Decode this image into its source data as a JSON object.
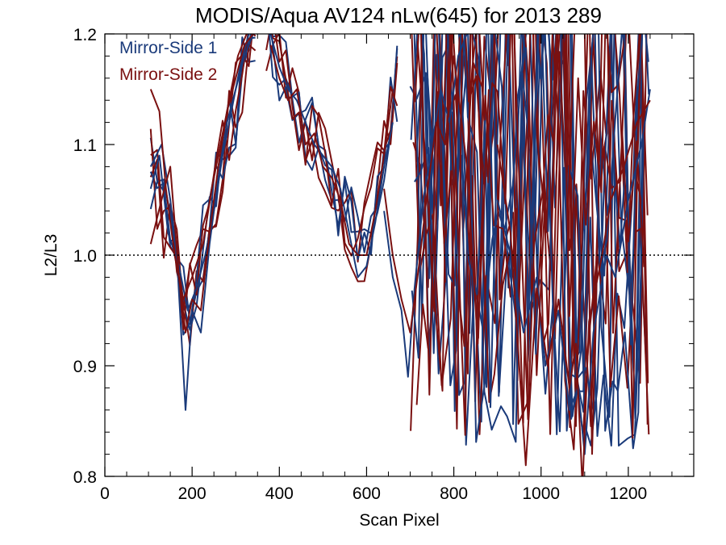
{
  "chart_data": {
    "type": "line",
    "title": "MODIS/Aqua AV124 nLw(645) for 2013 289",
    "xlabel": "Scan Pixel",
    "ylabel": "L2/L3",
    "xlim": [
      0,
      1350
    ],
    "ylim": [
      0.8,
      1.2
    ],
    "xticks": [
      0,
      200,
      400,
      600,
      800,
      1000,
      1200
    ],
    "yticks": [
      0.8,
      0.9,
      1.0,
      1.1,
      1.2
    ],
    "xtick_labels": [
      "0",
      "200",
      "400",
      "600",
      "800",
      "1000",
      "1200"
    ],
    "ytick_labels": [
      "0.8",
      "0.9",
      "1.0",
      "1.1",
      "1.2"
    ],
    "reference_line": 1.0,
    "grid": false,
    "legend_position": "top-left",
    "colors": {
      "mirror_side_1": "#1a3a7a",
      "mirror_side_2": "#7a1010"
    },
    "series": [
      {
        "name": "Mirror-Side 1",
        "color": "#1a3a7a",
        "x": [
          105,
          130,
          150,
          165,
          185,
          200,
          220,
          240,
          260,
          280,
          300,
          320,
          340
        ],
        "y": [
          1.08,
          1.1,
          1.05,
          1.0,
          0.86,
          0.95,
          0.93,
          1.01,
          1.07,
          1.12,
          1.15,
          1.18,
          1.2
        ]
      },
      {
        "name": "Mirror-Side 1",
        "color": "#1a3a7a",
        "x": [
          105,
          125,
          145,
          170,
          190,
          210,
          230,
          250,
          270,
          290,
          310,
          330
        ],
        "y": [
          1.06,
          1.09,
          1.02,
          0.99,
          0.95,
          0.97,
          1.0,
          1.04,
          1.09,
          1.13,
          1.17,
          1.2
        ]
      },
      {
        "name": "Mirror-Side 1",
        "color": "#1a3a7a",
        "x": [
          380,
          400,
          420,
          440,
          460,
          480,
          500,
          520,
          540,
          560,
          580,
          600,
          620,
          640,
          660
        ],
        "y": [
          1.2,
          1.17,
          1.15,
          1.14,
          1.12,
          1.1,
          1.09,
          1.08,
          1.06,
          1.02,
          0.98,
          0.99,
          1.03,
          1.08,
          1.12
        ]
      },
      {
        "name": "Mirror-Side 1",
        "color": "#1a3a7a",
        "x": [
          640,
          660,
          680,
          695,
          710,
          730,
          750,
          770,
          790,
          810,
          830
        ],
        "y": [
          1.04,
          0.98,
          0.95,
          0.89,
          0.97,
          1.05,
          1.1,
          1.15,
          1.12,
          1.18,
          1.2
        ]
      },
      {
        "name": "Mirror-Side 1",
        "color": "#1a3a7a",
        "x": [
          900,
          930,
          960,
          990,
          1010,
          1040,
          1065,
          1085,
          1100,
          1120,
          1150,
          1170,
          1200,
          1230,
          1250
        ],
        "y": [
          1.05,
          1.0,
          0.93,
          0.98,
          0.9,
          0.95,
          0.86,
          0.88,
          0.82,
          0.93,
          1.0,
          0.98,
          1.05,
          1.1,
          1.15
        ]
      },
      {
        "name": "Mirror-Side 2",
        "color": "#7a1010",
        "x": [
          105,
          130,
          150,
          170,
          185,
          200,
          220,
          240,
          260,
          280,
          300,
          320,
          340
        ],
        "y": [
          1.01,
          1.05,
          1.08,
          0.98,
          0.93,
          0.96,
          0.95,
          1.02,
          1.08,
          1.13,
          1.16,
          1.19,
          1.2
        ]
      },
      {
        "name": "Mirror-Side 2",
        "color": "#7a1010",
        "x": [
          105,
          125,
          140,
          160,
          180,
          200,
          225,
          245,
          265,
          285,
          305,
          325
        ],
        "y": [
          1.15,
          1.13,
          1.06,
          1.0,
          0.96,
          0.98,
          1.01,
          1.06,
          1.1,
          1.14,
          1.18,
          1.2
        ]
      },
      {
        "name": "Mirror-Side 2",
        "color": "#7a1010",
        "x": [
          380,
          400,
          420,
          440,
          460,
          480,
          500,
          520,
          540,
          560,
          580,
          600,
          620,
          640,
          660
        ],
        "y": [
          1.19,
          1.16,
          1.14,
          1.15,
          1.1,
          1.11,
          1.08,
          1.07,
          1.05,
          1.01,
          1.0,
          1.0,
          1.04,
          1.09,
          1.15
        ]
      },
      {
        "name": "Mirror-Side 2",
        "color": "#7a1010",
        "x": [
          640,
          660,
          680,
          700,
          720,
          740,
          760,
          780,
          800,
          830,
          855,
          880
        ],
        "y": [
          1.06,
          1.0,
          0.96,
          0.93,
          0.99,
          1.06,
          1.12,
          1.1,
          1.18,
          1.08,
          0.92,
          1.15
        ]
      },
      {
        "name": "Mirror-Side 2",
        "color": "#7a1010",
        "x": [
          900,
          930,
          965,
          990,
          1015,
          1040,
          1065,
          1080,
          1095,
          1110,
          1140,
          1160,
          1190,
          1220,
          1250
        ],
        "y": [
          1.1,
          1.02,
          0.81,
          0.97,
          0.9,
          0.96,
          0.88,
          0.92,
          0.79,
          0.94,
          1.0,
          1.05,
          1.08,
          1.12,
          1.14
        ]
      }
    ],
    "dense_noise_region": {
      "x_range": [
        700,
        1250
      ],
      "y_range": [
        0.8,
        1.2
      ]
    }
  },
  "legend": [
    {
      "label": "Mirror-Side 1",
      "color": "#1a3a7a"
    },
    {
      "label": "Mirror-Side 2",
      "color": "#7a1010"
    }
  ]
}
